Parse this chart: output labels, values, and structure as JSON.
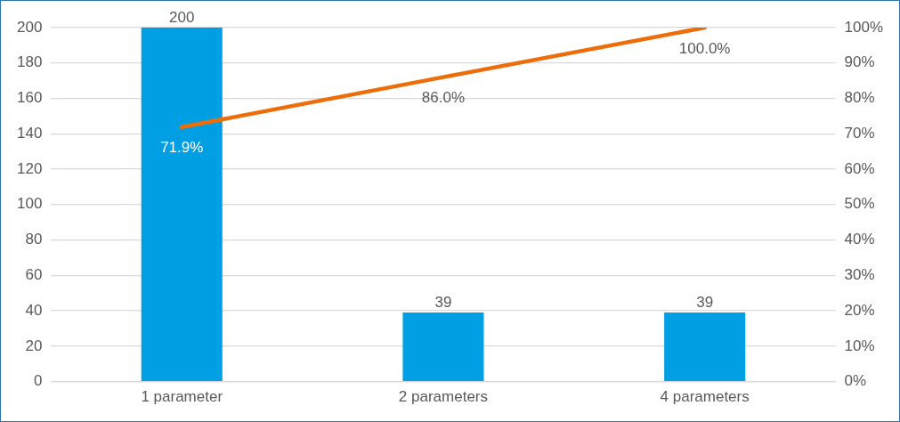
{
  "chart_data": {
    "type": "bar",
    "categories": [
      "1 parameter",
      "2 parameters",
      "4 parameters"
    ],
    "series": [
      {
        "color": "#009fe3",
        "values": [
          200,
          39,
          39
        ]
      },
      {
        "type": "line",
        "axis": "y2",
        "color": "#ed6d0a",
        "values": [
          71.9,
          86.0,
          100.0
        ],
        "value_labels": [
          "71.9%",
          "86.0%",
          "100.0%"
        ]
      }
    ],
    "data_labels": true,
    "marker": "none",
    "line_style": "solid",
    "ylim": [
      0,
      200
    ],
    "yticks": [
      0,
      20,
      40,
      60,
      80,
      100,
      120,
      140,
      160,
      180,
      200
    ],
    "y2lim": [
      0,
      100
    ],
    "y2ticks": [
      {
        "value": 0,
        "label": "0%"
      },
      {
        "value": 10,
        "label": "10%"
      },
      {
        "value": 20,
        "label": "20%"
      },
      {
        "value": 30,
        "label": "30%"
      },
      {
        "value": 40,
        "label": "40%"
      },
      {
        "value": 50,
        "label": "50%"
      },
      {
        "value": 60,
        "label": "60%"
      },
      {
        "value": 70,
        "label": "70%"
      },
      {
        "value": 80,
        "label": "80%"
      },
      {
        "value": 90,
        "label": "90%"
      },
      {
        "value": 100,
        "label": "100%"
      }
    ],
    "grid": "y",
    "legend": false
  }
}
